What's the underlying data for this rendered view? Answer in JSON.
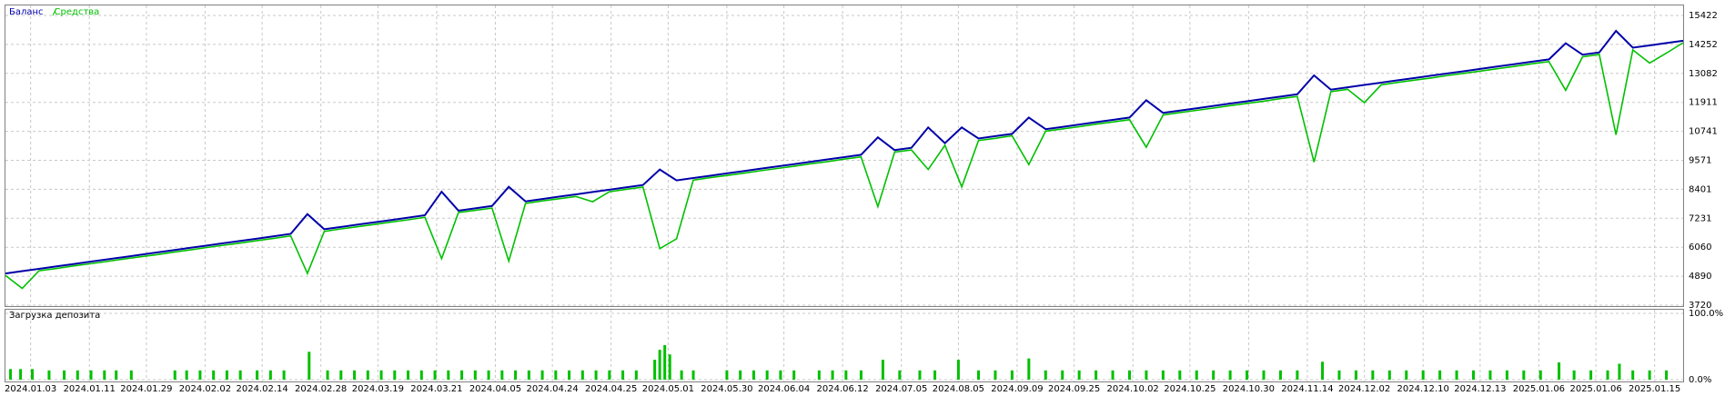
{
  "chart_data": [
    {
      "type": "line",
      "legend": "top-left",
      "grid": true,
      "x": [
        0,
        1,
        2,
        3,
        4,
        5,
        6,
        7,
        8,
        9,
        10,
        11,
        12,
        13,
        14,
        15,
        16,
        17,
        18,
        19,
        20,
        21,
        22,
        23,
        24,
        25,
        26,
        27,
        28,
        29,
        30,
        31,
        32,
        33,
        34,
        35,
        36,
        37,
        38,
        39,
        40,
        41,
        42,
        43,
        44,
        45,
        46,
        47,
        48,
        49,
        50,
        51,
        52,
        53,
        54,
        55,
        56,
        57,
        58,
        59,
        60,
        61,
        62,
        63,
        64,
        65,
        66,
        67,
        68,
        69,
        70,
        71,
        72,
        73,
        74,
        75,
        76,
        77,
        78,
        79,
        80,
        81,
        82,
        83,
        84,
        85,
        86,
        87,
        88,
        89,
        90,
        91,
        92,
        93,
        94,
        95,
        96,
        97,
        98,
        99,
        100
      ],
      "xlim": [
        0,
        100
      ],
      "ylim": [
        3720,
        15422
      ],
      "yticks": [
        3720,
        4890,
        6060,
        7231,
        8401,
        9571,
        10741,
        11911,
        13082,
        14252,
        15422
      ],
      "series": [
        {
          "name": "Баланс",
          "color": "#0000a8",
          "values": [
            5000,
            5094,
            5188,
            5282,
            5376,
            5470,
            5564,
            5658,
            5752,
            5846,
            5940,
            6034,
            6128,
            6222,
            6316,
            6410,
            6504,
            6598,
            7400,
            6786,
            6880,
            6974,
            7068,
            7162,
            7256,
            7350,
            8300,
            7538,
            7632,
            7726,
            8500,
            7914,
            8008,
            8102,
            8196,
            8290,
            8384,
            8478,
            8572,
            9200,
            8760,
            8854,
            8948,
            9042,
            9136,
            9230,
            9324,
            9418,
            9512,
            9606,
            9700,
            9794,
            10500,
            9982,
            10076,
            10900,
            10264,
            10900,
            10452,
            10546,
            10640,
            11300,
            10828,
            10922,
            11016,
            11110,
            11204,
            11298,
            12000,
            11486,
            11580,
            11674,
            11768,
            11862,
            11956,
            12050,
            12144,
            12238,
            13000,
            12426,
            12520,
            12614,
            12708,
            12802,
            12896,
            12990,
            13084,
            13178,
            13272,
            13366,
            13460,
            13554,
            13648,
            14300,
            13836,
            13930,
            14800,
            14118,
            14212,
            14306,
            14400
          ]
        },
        {
          "name": "Средства",
          "color": "#00c000",
          "values": [
            4920,
            4400,
            5110,
            5200,
            5300,
            5390,
            5480,
            5580,
            5670,
            5760,
            5860,
            5950,
            6050,
            6140,
            6230,
            6330,
            6420,
            6520,
            5000,
            6700,
            6800,
            6890,
            6980,
            7080,
            7170,
            7270,
            5600,
            7460,
            7550,
            7640,
            5500,
            7830,
            7930,
            8020,
            8110,
            7900,
            8300,
            8400,
            8490,
            6000,
            6400,
            8770,
            8870,
            8960,
            9050,
            9150,
            9240,
            9330,
            9430,
            9520,
            9620,
            9710,
            7700,
            9900,
            9990,
            9200,
            10180,
            8500,
            10370,
            10460,
            10560,
            9400,
            10750,
            10840,
            10930,
            11030,
            11120,
            11210,
            10100,
            11400,
            11500,
            11590,
            11680,
            11780,
            11870,
            11960,
            12060,
            12150,
            9500,
            12340,
            12440,
            11900,
            12620,
            12720,
            12810,
            12900,
            13000,
            13090,
            13180,
            13280,
            13370,
            13470,
            13560,
            12400,
            13750,
            13850,
            10600,
            14030,
            13500,
            13900,
            14320
          ]
        }
      ]
    },
    {
      "type": "bar",
      "title": "Загрузка депозита",
      "color": "#00c000",
      "grid": true,
      "x": [
        0.3,
        0.9,
        1.6,
        2.6,
        3.5,
        4.3,
        5.1,
        5.9,
        6.6,
        7.5,
        10.1,
        10.8,
        11.6,
        12.4,
        13.2,
        14.0,
        15.0,
        15.8,
        16.6,
        18.1,
        19.2,
        20.0,
        20.8,
        21.6,
        22.4,
        23.2,
        24.0,
        24.8,
        25.6,
        26.4,
        27.2,
        28.0,
        28.8,
        29.6,
        30.4,
        31.2,
        32.0,
        32.8,
        33.6,
        34.4,
        35.2,
        36.0,
        36.8,
        37.6,
        38.7,
        39.0,
        39.3,
        39.6,
        40.3,
        41.0,
        43.0,
        43.8,
        44.6,
        45.4,
        46.2,
        47.0,
        48.5,
        49.3,
        50.1,
        51.0,
        52.3,
        53.3,
        54.5,
        55.4,
        56.8,
        58.0,
        59.0,
        60.0,
        61.0,
        62.0,
        63.0,
        64.0,
        65.0,
        66.0,
        67.0,
        68.0,
        69.0,
        70.0,
        71.0,
        72.0,
        73.0,
        74.0,
        75.0,
        76.0,
        77.0,
        78.5,
        79.5,
        80.5,
        81.5,
        82.5,
        83.5,
        84.5,
        85.5,
        86.5,
        87.5,
        88.5,
        89.5,
        90.5,
        91.5,
        92.6,
        93.5,
        94.5,
        95.5,
        96.2,
        97.0,
        98.0,
        99.0
      ],
      "values": [
        16,
        16,
        16,
        14,
        14,
        14,
        14,
        14,
        14,
        14,
        14,
        14,
        14,
        14,
        14,
        14,
        14,
        14,
        14,
        42,
        14,
        14,
        14,
        14,
        14,
        14,
        14,
        14,
        14,
        14,
        14,
        14,
        14,
        14,
        14,
        14,
        14,
        14,
        14,
        14,
        14,
        14,
        14,
        14,
        30,
        45,
        52,
        38,
        14,
        14,
        14,
        14,
        14,
        14,
        14,
        14,
        14,
        14,
        14,
        14,
        30,
        14,
        14,
        14,
        30,
        14,
        14,
        14,
        32,
        14,
        14,
        14,
        14,
        14,
        14,
        14,
        14,
        14,
        14,
        14,
        14,
        14,
        14,
        14,
        14,
        27,
        14,
        14,
        14,
        14,
        14,
        14,
        14,
        14,
        14,
        14,
        14,
        14,
        14,
        26,
        14,
        14,
        14,
        24,
        14,
        14,
        14
      ],
      "xlim": [
        0,
        100
      ],
      "ylim": [
        0,
        100
      ],
      "yticks": [
        {
          "value": 0,
          "label": "0.0%"
        },
        {
          "value": 100,
          "label": "100.0%"
        }
      ],
      "xticks": [
        {
          "value": 1.5,
          "label": "2024.01.03"
        },
        {
          "value": 5,
          "label": "2024.01.11"
        },
        {
          "value": 8.4,
          "label": "2024.01.29"
        },
        {
          "value": 11.9,
          "label": "2024.02.02"
        },
        {
          "value": 15.3,
          "label": "2024.02.14"
        },
        {
          "value": 18.8,
          "label": "2024.02.28"
        },
        {
          "value": 22.2,
          "label": "2024.03.19"
        },
        {
          "value": 25.7,
          "label": "2024.03.21"
        },
        {
          "value": 29.2,
          "label": "2024.04.05"
        },
        {
          "value": 32.6,
          "label": "2024.04.24"
        },
        {
          "value": 36.1,
          "label": "2024.04.25"
        },
        {
          "value": 39.5,
          "label": "2024.05.01"
        },
        {
          "value": 43,
          "label": "2024.05.30"
        },
        {
          "value": 46.4,
          "label": "2024.06.04"
        },
        {
          "value": 49.9,
          "label": "2024.06.12"
        },
        {
          "value": 53.4,
          "label": "2024.07.05"
        },
        {
          "value": 56.8,
          "label": "2024.08.05"
        },
        {
          "value": 60.3,
          "label": "2024.09.09"
        },
        {
          "value": 63.7,
          "label": "2024.09.25"
        },
        {
          "value": 67.2,
          "label": "2024.10.02"
        },
        {
          "value": 70.6,
          "label": "2024.10.25"
        },
        {
          "value": 74.1,
          "label": "2024.10.30"
        },
        {
          "value": 77.6,
          "label": "2024.11.14"
        },
        {
          "value": 81,
          "label": "2024.12.02"
        },
        {
          "value": 84.5,
          "label": "2024.12.10"
        },
        {
          "value": 87.9,
          "label": "2024.12.13"
        },
        {
          "value": 91.4,
          "label": "2025.01.06"
        },
        {
          "value": 94.8,
          "label": "2025.01.06"
        },
        {
          "value": 98.3,
          "label": "2025.01.15"
        }
      ]
    }
  ]
}
